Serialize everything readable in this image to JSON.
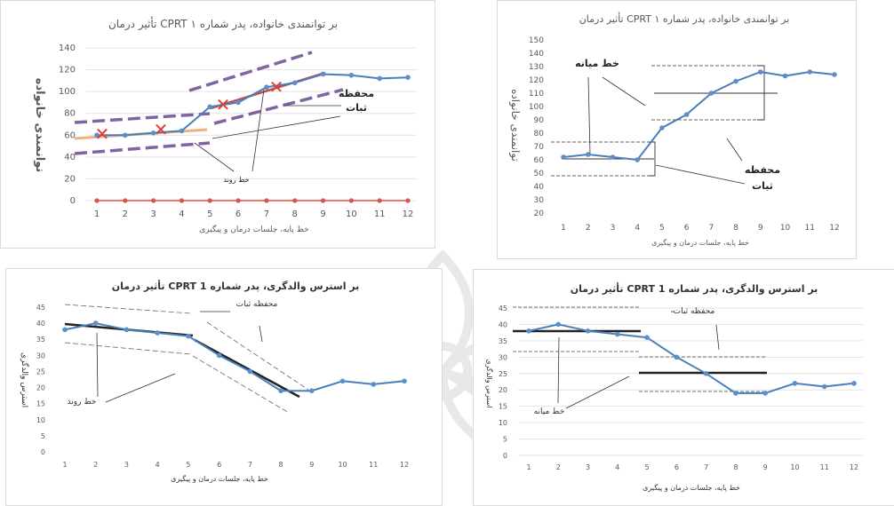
{
  "chart_data": [
    {
      "type": "line",
      "title": "تأثیر درمان CPRT بر توانمندی خانواده، پدر شماره ۱",
      "ylabel": "توانمندی خانواده",
      "xlabel": "خط پایه، جلسات درمان و پیگیری",
      "categories": [
        "1",
        "2",
        "3",
        "4",
        "5",
        "6",
        "7",
        "8",
        "9",
        "10",
        "11",
        "12"
      ],
      "ylim": [
        0,
        140
      ],
      "yticks": [
        "0",
        "20",
        "40",
        "60",
        "80",
        "100",
        "120",
        "140"
      ],
      "series": [
        {
          "values": [
            60,
            60,
            62,
            64,
            86,
            90,
            104,
            108,
            116,
            115,
            112,
            113
          ]
        },
        {
          "values": [
            0,
            0,
            0,
            0,
            0,
            0,
            0,
            0,
            0,
            0,
            0,
            0
          ]
        }
      ],
      "annotations": [
        "محفظه",
        "ثبات",
        "خط روند"
      ]
    },
    {
      "type": "line",
      "title": "تأثیر درمان CPRT بر توانمندی خانواده، پدر شماره ۱",
      "ylabel": "توانمندی خانواده",
      "xlabel": "خط پایه، جلسات درمان و پیگیری",
      "categories": [
        "1",
        "2",
        "3",
        "4",
        "5",
        "6",
        "7",
        "8",
        "9",
        "10",
        "11",
        "12"
      ],
      "ylim": [
        20,
        150
      ],
      "yticks": [
        "20",
        "30",
        "40",
        "50",
        "60",
        "70",
        "80",
        "90",
        "100",
        "110",
        "120",
        "130",
        "140",
        "150"
      ],
      "series": [
        {
          "values": [
            62,
            64,
            62,
            60,
            84,
            94,
            110,
            119,
            126,
            123,
            126,
            124
          ]
        }
      ],
      "annotations": [
        "خط میانه",
        "محفظه",
        "ثبات"
      ]
    },
    {
      "type": "line",
      "title": "تأثیر درمان CPRT بر استرس والدگری، پدر شماره 1",
      "ylabel": "استرس والدگری",
      "xlabel": "خط پایه، جلسات درمان و پیگیری",
      "categories": [
        "1",
        "2",
        "3",
        "4",
        "5",
        "6",
        "7",
        "8",
        "9",
        "10",
        "11",
        "12"
      ],
      "ylim": [
        0,
        45
      ],
      "yticks": [
        "0",
        "5",
        "10",
        "15",
        "20",
        "25",
        "30",
        "35",
        "40",
        "45"
      ],
      "series": [
        {
          "values": [
            38,
            40,
            38,
            37,
            36,
            30,
            25,
            19,
            19,
            22,
            21,
            22
          ]
        }
      ],
      "annotations": [
        "محفظه ثبات",
        "خط روند"
      ]
    },
    {
      "type": "line",
      "title": "تأثیر درمان CPRT بر استرس والدگری، پدر شماره 1",
      "ylabel": "استرس والدگری",
      "xlabel": "خط پایه، جلسات درمان و پیگیری",
      "categories": [
        "1",
        "2",
        "3",
        "4",
        "5",
        "6",
        "7",
        "8",
        "9",
        "10",
        "11",
        "12"
      ],
      "ylim": [
        0,
        45
      ],
      "yticks": [
        "0",
        "5",
        "10",
        "15",
        "20",
        "25",
        "30",
        "35",
        "40",
        "45"
      ],
      "series": [
        {
          "values": [
            38,
            40,
            38,
            37,
            36,
            30,
            25,
            19,
            19,
            22,
            21,
            22
          ]
        }
      ],
      "annotations": [
        "محفظه ثبات",
        "خط میانه"
      ]
    }
  ],
  "colors": {
    "line": "#4a7ebb",
    "marker": "#5b8fc9",
    "zero_line": "#d9534f",
    "trend_red": "#c0504d",
    "trend_orange": "#f0b27a",
    "envelope": "#8064a2",
    "cross": "#e03c31",
    "grid": "#e3e3e3",
    "text": "#595959"
  }
}
